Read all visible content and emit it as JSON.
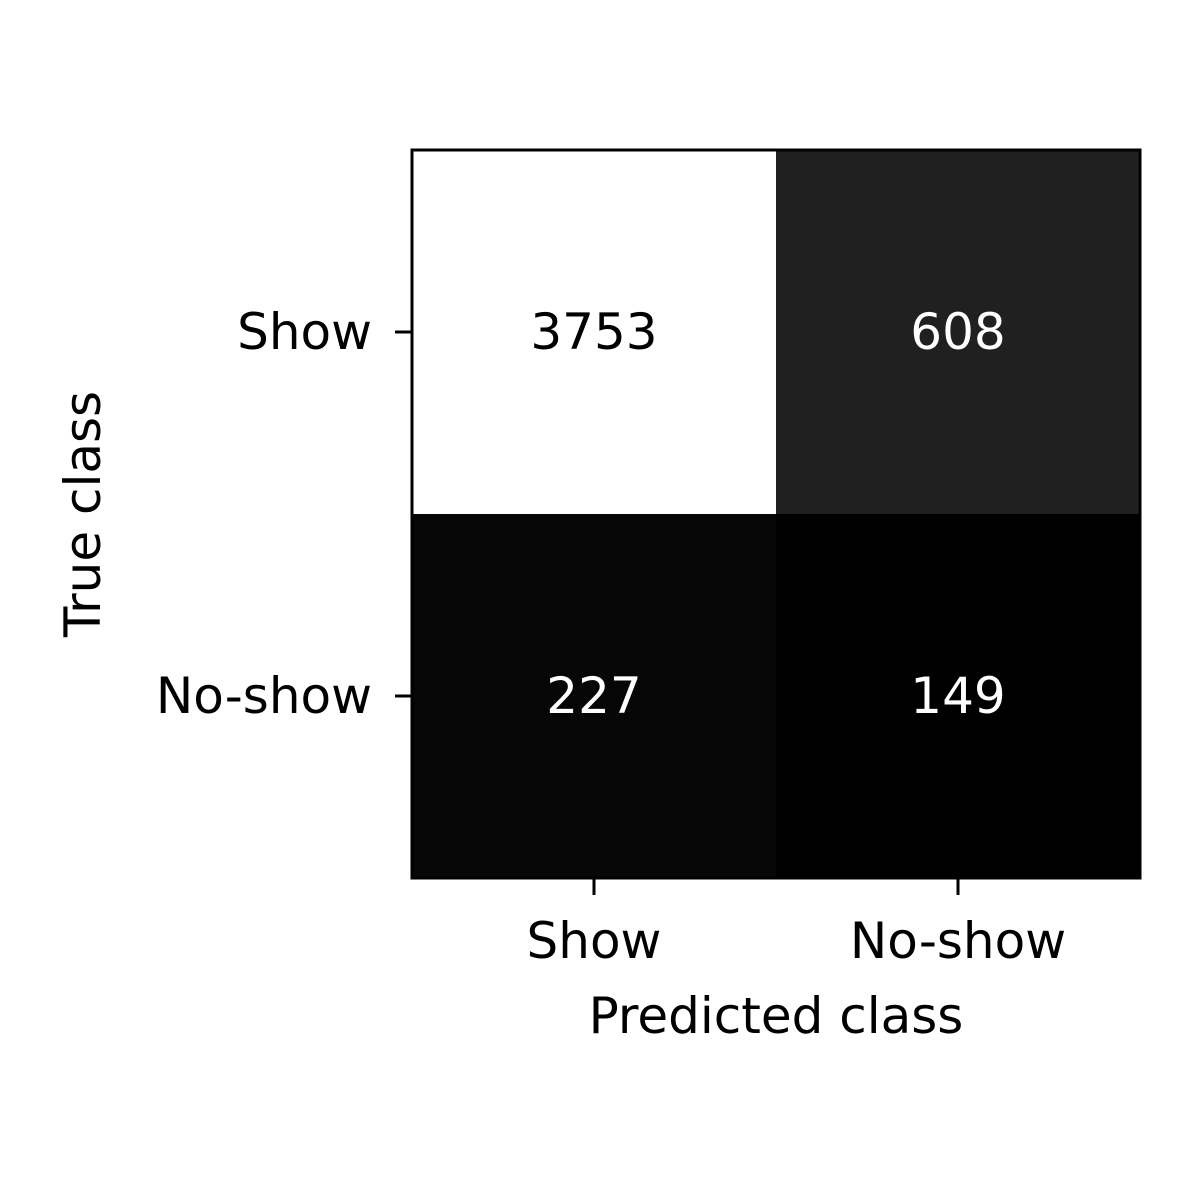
{
  "chart_data": {
    "type": "heatmap",
    "title": "",
    "xlabel": "Predicted class",
    "ylabel": "True class",
    "x_categories": [
      "Show",
      "No-show"
    ],
    "y_categories": [
      "Show",
      "No-show"
    ],
    "values": [
      [
        3753,
        608
      ],
      [
        227,
        149
      ]
    ],
    "colormap": "gray",
    "color_range": [
      149,
      3753
    ],
    "text_colors": {
      "light_cell": "#000000",
      "dark_cell": "#ffffff"
    },
    "legend": "none",
    "grid": false
  }
}
